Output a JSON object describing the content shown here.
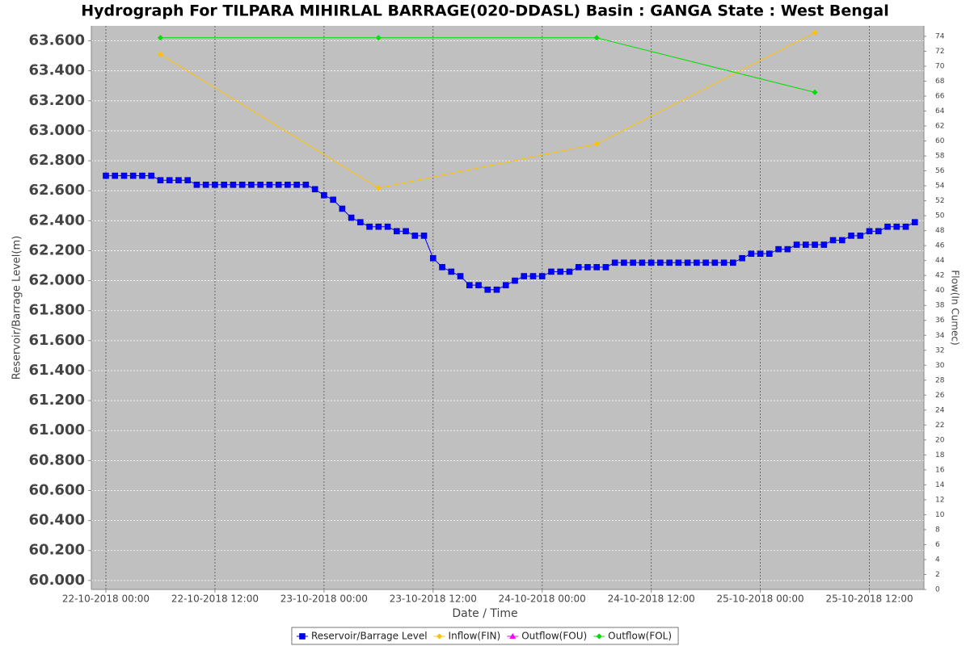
{
  "chart_data": {
    "type": "line",
    "title": "Hydrograph For TILPARA  MIHIRLAL BARRAGE(020-DDASL) Basin : GANGA State : West Bengal",
    "x_label": "Date / Time",
    "y_label": "Reservoir/Barrage Level(m)",
    "y2_label": "Flow(In Cumec)",
    "xlim": [
      "21-10-2018 22:24",
      "25-10-2018 18:00"
    ],
    "xticks": [
      "22-10-2018 00:00",
      "22-10-2018 12:00",
      "23-10-2018 00:00",
      "23-10-2018 12:00",
      "24-10-2018 00:00",
      "24-10-2018 12:00",
      "25-10-2018 00:00",
      "25-10-2018 12:00"
    ],
    "ylim": [
      59.94,
      63.7
    ],
    "yticks": [
      {
        "value": 60,
        "label": "60.000"
      },
      {
        "value": 60.2,
        "label": "60.200"
      },
      {
        "value": 60.4,
        "label": "60.400"
      },
      {
        "value": 60.6,
        "label": "60.600"
      },
      {
        "value": 60.8,
        "label": "60.800"
      },
      {
        "value": 61,
        "label": "61.000"
      },
      {
        "value": 61.2,
        "label": "61.200"
      },
      {
        "value": 61.4,
        "label": "61.400"
      },
      {
        "value": 61.6,
        "label": "61.600"
      },
      {
        "value": 61.8,
        "label": "61.800"
      },
      {
        "value": 62,
        "label": "62.000"
      },
      {
        "value": 62.2,
        "label": "62.200"
      },
      {
        "value": 62.4,
        "label": "62.400"
      },
      {
        "value": 62.6,
        "label": "62.600"
      },
      {
        "value": 62.8,
        "label": "62.800"
      },
      {
        "value": 63,
        "label": "63.000"
      },
      {
        "value": 63.2,
        "label": "63.200"
      },
      {
        "value": 63.4,
        "label": "63.400"
      },
      {
        "value": 63.6,
        "label": "63.600"
      }
    ],
    "y2lim": [
      0,
      75.4
    ],
    "y2ticks": [
      0,
      2,
      4,
      6,
      8,
      10,
      12,
      14,
      16,
      18,
      20,
      22,
      24,
      26,
      28,
      30,
      32,
      34,
      36,
      38,
      40,
      42,
      44,
      46,
      48,
      50,
      52,
      54,
      56,
      58,
      60,
      62,
      64,
      66,
      68,
      70,
      72,
      74
    ],
    "grid": true,
    "legend": "bottom",
    "series": [
      {
        "name": "Reservoir/Barrage Level",
        "color": "#0000ff",
        "marker": "square",
        "x": [
          "22-10-2018 00:00",
          "22-10-2018 01:00",
          "22-10-2018 02:00",
          "22-10-2018 03:00",
          "22-10-2018 04:00",
          "22-10-2018 05:00",
          "22-10-2018 06:00",
          "22-10-2018 07:00",
          "22-10-2018 08:00",
          "22-10-2018 09:00",
          "22-10-2018 10:00",
          "22-10-2018 11:00",
          "22-10-2018 12:00",
          "22-10-2018 13:00",
          "22-10-2018 14:00",
          "22-10-2018 15:00",
          "22-10-2018 16:00",
          "22-10-2018 17:00",
          "22-10-2018 18:00",
          "22-10-2018 19:00",
          "22-10-2018 20:00",
          "22-10-2018 21:00",
          "22-10-2018 22:00",
          "22-10-2018 23:00",
          "23-10-2018 00:00",
          "23-10-2018 01:00",
          "23-10-2018 02:00",
          "23-10-2018 03:00",
          "23-10-2018 04:00",
          "23-10-2018 05:00",
          "23-10-2018 06:00",
          "23-10-2018 07:00",
          "23-10-2018 08:00",
          "23-10-2018 09:00",
          "23-10-2018 10:00",
          "23-10-2018 11:00",
          "23-10-2018 12:00",
          "23-10-2018 13:00",
          "23-10-2018 14:00",
          "23-10-2018 15:00",
          "23-10-2018 16:00",
          "23-10-2018 17:00",
          "23-10-2018 18:00",
          "23-10-2018 19:00",
          "23-10-2018 20:00",
          "23-10-2018 21:00",
          "23-10-2018 22:00",
          "23-10-2018 23:00",
          "24-10-2018 00:00",
          "24-10-2018 01:00",
          "24-10-2018 02:00",
          "24-10-2018 03:00",
          "24-10-2018 04:00",
          "24-10-2018 05:00",
          "24-10-2018 06:00",
          "24-10-2018 07:00",
          "24-10-2018 08:00",
          "24-10-2018 09:00",
          "24-10-2018 10:00",
          "24-10-2018 11:00",
          "24-10-2018 12:00",
          "24-10-2018 13:00",
          "24-10-2018 14:00",
          "24-10-2018 15:00",
          "24-10-2018 16:00",
          "24-10-2018 17:00",
          "24-10-2018 18:00",
          "24-10-2018 19:00",
          "24-10-2018 20:00",
          "24-10-2018 21:00",
          "24-10-2018 22:00",
          "24-10-2018 23:00",
          "25-10-2018 00:00",
          "25-10-2018 01:00",
          "25-10-2018 02:00",
          "25-10-2018 03:00",
          "25-10-2018 04:00",
          "25-10-2018 05:00",
          "25-10-2018 06:00",
          "25-10-2018 07:00",
          "25-10-2018 08:00",
          "25-10-2018 09:00",
          "25-10-2018 10:00",
          "25-10-2018 11:00",
          "25-10-2018 12:00",
          "25-10-2018 13:00",
          "25-10-2018 14:00",
          "25-10-2018 15:00",
          "25-10-2018 16:00",
          "25-10-2018 17:00"
        ],
        "values": [
          62.7,
          62.7,
          62.7,
          62.7,
          62.7,
          62.7,
          62.67,
          62.67,
          62.67,
          62.67,
          62.64,
          62.64,
          62.64,
          62.64,
          62.64,
          62.64,
          62.64,
          62.64,
          62.64,
          62.64,
          62.64,
          62.64,
          62.64,
          62.61,
          62.57,
          62.54,
          62.48,
          62.42,
          62.39,
          62.36,
          62.36,
          62.36,
          62.33,
          62.33,
          62.3,
          62.3,
          62.15,
          62.09,
          62.06,
          62.03,
          61.97,
          61.97,
          61.94,
          61.94,
          61.97,
          62.0,
          62.03,
          62.03,
          62.03,
          62.06,
          62.06,
          62.06,
          62.09,
          62.09,
          62.09,
          62.09,
          62.12,
          62.12,
          62.12,
          62.12,
          62.12,
          62.12,
          62.12,
          62.12,
          62.12,
          62.12,
          62.12,
          62.12,
          62.12,
          62.12,
          62.15,
          62.18,
          62.18,
          62.18,
          62.21,
          62.21,
          62.24,
          62.24,
          62.24,
          62.24,
          62.27,
          62.27,
          62.3,
          62.3,
          62.33,
          62.33,
          62.36,
          62.36,
          62.36,
          62.39
        ]
      },
      {
        "name": "Inflow(FIN)",
        "color": "#ffc000",
        "marker": "diamond",
        "axis": "y2",
        "x": [
          "22-10-2018 06:00",
          "23-10-2018 06:00",
          "24-10-2018 06:00",
          "25-10-2018 06:00"
        ],
        "values": [
          71.6,
          53.7,
          59.6,
          74.5
        ]
      },
      {
        "name": "Outflow(FOU)",
        "color": "#ff00ff",
        "marker": "triangle",
        "axis": "y2",
        "x": [
          "22-10-2018 06:00",
          "23-10-2018 06:00",
          "24-10-2018 06:00",
          "25-10-2018 06:00"
        ],
        "values": [
          null,
          null,
          null,
          null
        ]
      },
      {
        "name": "Outflow(FOL)",
        "color": "#00dd00",
        "marker": "diamond",
        "axis": "y2",
        "x": [
          "22-10-2018 06:00",
          "23-10-2018 06:00",
          "24-10-2018 06:00",
          "25-10-2018 06:00"
        ],
        "values": [
          73.8,
          73.8,
          73.8,
          66.5
        ]
      }
    ]
  }
}
